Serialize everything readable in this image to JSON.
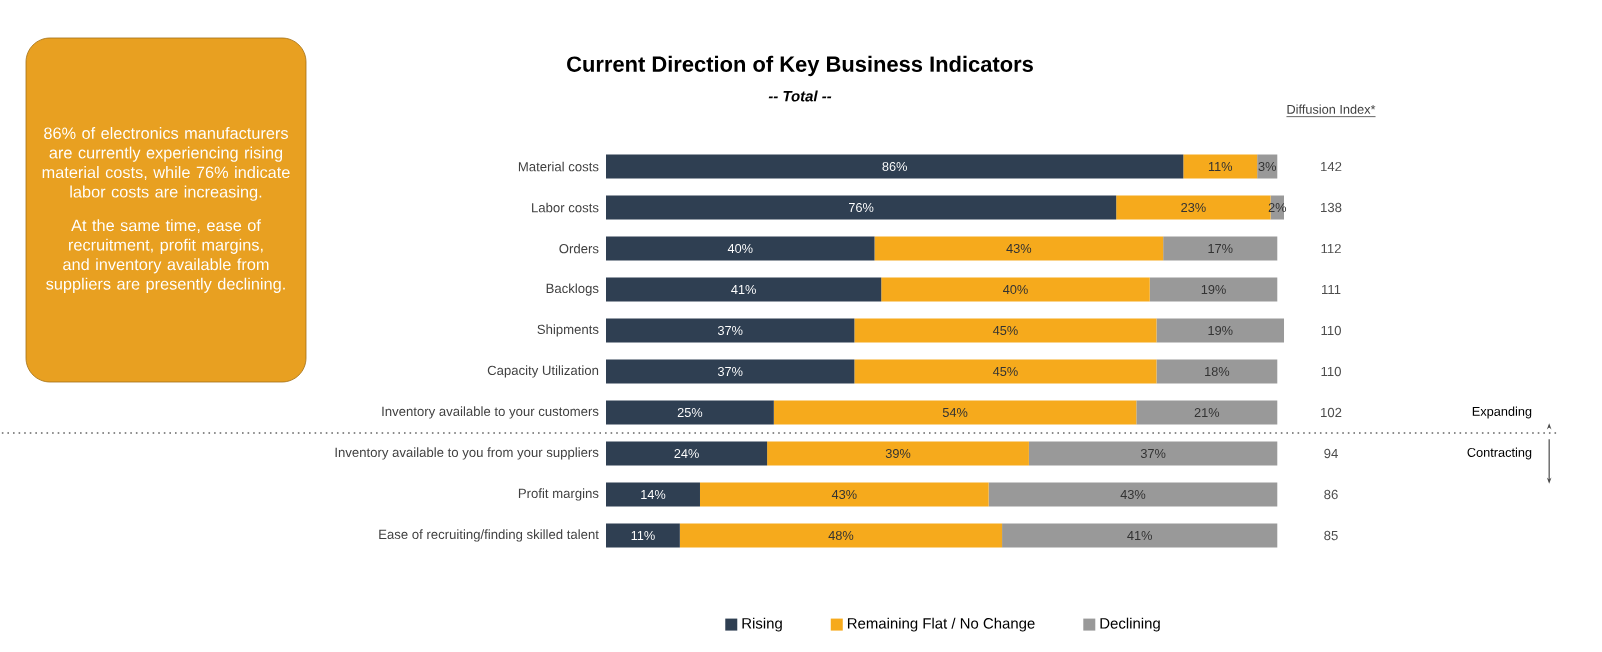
{
  "chart_data": {
    "type": "bar",
    "orientation": "horizontal",
    "stacked": true,
    "title": "Current Direction of Key Business Indicators",
    "subtitle": "-- Total --",
    "categories": [
      "Material costs",
      "Labor costs",
      "Orders",
      "Backlogs",
      "Shipments",
      "Capacity Utilization",
      "Inventory available to your customers",
      "Inventory available to you from your suppliers",
      "Profit margins",
      "Ease of recruiting/finding skilled talent"
    ],
    "xlim": [
      0,
      101
    ],
    "series": [
      {
        "name": "Rising",
        "color": "#2f3f52",
        "values": [
          86,
          76,
          40,
          41,
          37,
          37,
          25,
          24,
          14,
          11
        ],
        "value_labels": [
          "86%",
          "76%",
          "40%",
          "41%",
          "37%",
          "37%",
          "25%",
          "24%",
          "14%",
          "11%"
        ]
      },
      {
        "name": "Remaining Flat / No Change",
        "color": "#f6aa1c",
        "values": [
          11,
          23,
          43,
          40,
          45,
          45,
          54,
          39,
          43,
          48
        ],
        "value_labels": [
          "11%",
          "23%",
          "43%",
          "40%",
          "45%",
          "45%",
          "54%",
          "39%",
          "43%",
          "48%"
        ]
      },
      {
        "name": "Declining",
        "color": "#999999",
        "values": [
          3,
          2,
          17,
          19,
          19,
          18,
          21,
          37,
          43,
          41
        ],
        "value_labels": [
          "3%",
          "2%",
          "17%",
          "19%",
          "19%",
          "18%",
          "21%",
          "37%",
          "43%",
          "41%"
        ]
      }
    ],
    "legend": "bottom",
    "annotations": [
      "86% of electronics manufacturers are currently experiencing rising material costs, while 76% indicate labor costs are increasing.",
      "At the same time, ease of recruitment, profit margins, and inventory available from suppliers are presently declining.",
      "Diffusion Index*",
      "142",
      "138",
      "112",
      "111",
      "110",
      "110",
      "102",
      "94",
      "86",
      "85",
      "Expanding",
      "Contracting"
    ]
  }
}
